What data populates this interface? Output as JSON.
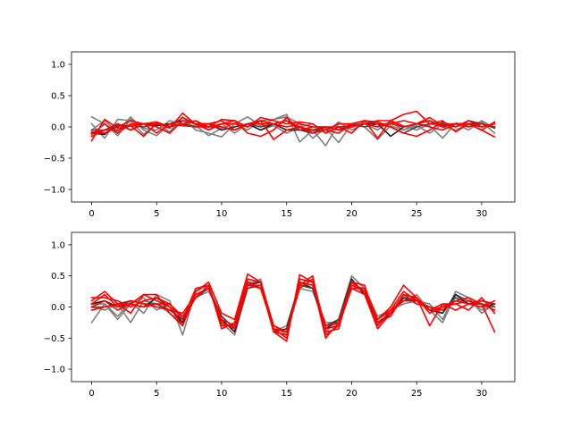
{
  "chart_data": [
    {
      "type": "line",
      "title": "",
      "xlabel": "",
      "ylabel": "",
      "xlim": [
        -1.55,
        32.55
      ],
      "ylim": [
        -1.2,
        1.2
      ],
      "x": [
        0,
        1,
        2,
        3,
        4,
        5,
        6,
        7,
        8,
        9,
        10,
        11,
        12,
        13,
        14,
        15,
        16,
        17,
        18,
        19,
        20,
        21,
        22,
        23,
        24,
        25,
        26,
        27,
        28,
        29,
        30,
        31
      ],
      "xticks": [
        0,
        5,
        10,
        15,
        20,
        25,
        30
      ],
      "xtick_labels": [
        "0",
        "5",
        "10",
        "15",
        "20",
        "25",
        "30"
      ],
      "yticks": [
        -1.0,
        -0.5,
        0.0,
        0.5,
        1.0
      ],
      "ytick_labels": [
        "−1.0",
        "−0.5",
        "0.0",
        "0.5",
        "1.0"
      ],
      "grid": false,
      "legend": "none",
      "series": [
        {
          "color": "#7f7f7f",
          "values": [
            0.16,
            0.05,
            -0.14,
            0.12,
            -0.02,
            -0.05,
            0.1,
            0.04,
            0.02,
            -0.14,
            -0.02,
            0.06,
            -0.05,
            0.1,
            0.12,
            0.2,
            -0.24,
            -0.05,
            -0.3,
            0.05,
            0.04,
            0.0,
            -0.2,
            0.02,
            -0.05,
            0.05,
            0.02,
            -0.18,
            0.06,
            0.03,
            0.08,
            -0.1
          ]
        },
        {
          "color": "#7f7f7f",
          "values": [
            0.05,
            -0.18,
            0.12,
            0.1,
            -0.12,
            0.05,
            -0.08,
            0.16,
            -0.05,
            -0.1,
            -0.16,
            0.05,
            0.16,
            0.02,
            0.12,
            0.16,
            0.05,
            -0.18,
            -0.02,
            -0.25,
            0.05,
            0.05,
            0.0,
            0.08,
            -0.05,
            0.02,
            -0.1,
            0.05,
            0.05,
            -0.05,
            0.1,
            -0.02
          ]
        },
        {
          "color": "#7f7f7f",
          "values": [
            -0.05,
            0.1,
            -0.08,
            0.16,
            -0.05,
            -0.14,
            0.04,
            0.02,
            0.1,
            -0.05,
            0.05,
            -0.1,
            0.05,
            -0.05,
            0.02,
            -0.1,
            0.0,
            0.05,
            -0.1,
            0.08,
            -0.05,
            0.05,
            -0.05,
            0.1,
            0.02,
            -0.05,
            0.05,
            0.0,
            -0.05,
            0.05,
            0.0,
            0.05
          ]
        },
        {
          "color": "#222222",
          "values": [
            -0.1,
            -0.12,
            0.05,
            -0.05,
            0.05,
            0.02,
            0.05,
            0.1,
            0.05,
            0.05,
            -0.05,
            0.0,
            0.05,
            -0.05,
            0.05,
            -0.05,
            -0.05,
            -0.05,
            0.0,
            -0.05,
            0.0,
            0.05,
            0.05,
            -0.15,
            0.0,
            0.05,
            0.1,
            0.0,
            0.05,
            0.05,
            0.05,
            0.0
          ]
        },
        {
          "color": "#444444",
          "values": [
            -0.05,
            -0.05,
            0.02,
            0.02,
            0.0,
            0.05,
            0.0,
            0.05,
            0.0,
            0.05,
            0.0,
            -0.05,
            0.05,
            0.0,
            0.05,
            0.1,
            -0.05,
            -0.1,
            0.0,
            -0.05,
            0.05,
            0.0,
            0.05,
            0.0,
            -0.1,
            0.0,
            0.05,
            0.05,
            0.0,
            0.1,
            0.05,
            -0.02
          ]
        },
        {
          "color": "#ff0000",
          "values": [
            -0.22,
            0.12,
            -0.02,
            0.02,
            -0.15,
            0.06,
            -0.02,
            0.22,
            0.04,
            0.0,
            0.12,
            0.1,
            0.0,
            0.15,
            0.1,
            0.05,
            0.08,
            0.05,
            -0.1,
            0.0,
            -0.1,
            0.1,
            0.05,
            0.05,
            0.0,
            0.05,
            0.15,
            0.02,
            0.05,
            0.05,
            -0.05,
            -0.16
          ]
        },
        {
          "color": "#ff0000",
          "values": [
            -0.08,
            -0.1,
            0.0,
            0.1,
            0.05,
            0.08,
            0.0,
            0.15,
            0.05,
            -0.05,
            0.05,
            0.1,
            -0.1,
            -0.15,
            -0.05,
            0.15,
            -0.05,
            0.0,
            0.0,
            0.0,
            0.02,
            0.05,
            0.1,
            0.1,
            0.2,
            0.25,
            0.05,
            0.1,
            -0.08,
            0.05,
            -0.05,
            0.08
          ]
        },
        {
          "color": "#ff0000",
          "values": [
            -0.12,
            0.05,
            -0.1,
            0.05,
            0.05,
            0.0,
            -0.1,
            0.1,
            0.05,
            0.05,
            0.1,
            -0.05,
            0.05,
            0.1,
            -0.2,
            -0.05,
            0.0,
            -0.05,
            -0.05,
            -0.1,
            0.05,
            0.1,
            0.08,
            0.0,
            -0.1,
            -0.15,
            -0.05,
            0.08,
            0.0,
            0.1,
            0.0,
            0.05
          ]
        },
        {
          "color": "#ff0000",
          "values": [
            -0.15,
            -0.05,
            -0.05,
            0.02,
            0.05,
            -0.1,
            0.05,
            0.02,
            0.0,
            0.0,
            0.05,
            0.05,
            0.0,
            0.1,
            0.05,
            0.1,
            0.0,
            -0.1,
            -0.05,
            0.05,
            0.05,
            0.1,
            -0.18,
            0.1,
            0.0,
            0.05,
            0.0,
            -0.05,
            0.05,
            0.05,
            0.0,
            0.05
          ]
        },
        {
          "color": "#ff0000",
          "values": [
            -0.1,
            -0.05,
            0.05,
            -0.05,
            0.05,
            0.05,
            0.0,
            0.05,
            0.1,
            0.0,
            0.0,
            -0.05,
            0.05,
            0.05,
            0.05,
            0.0,
            0.05,
            0.0,
            0.0,
            -0.05,
            0.0,
            0.05,
            0.0,
            0.05,
            0.1,
            0.05,
            0.1,
            0.0,
            0.05,
            0.0,
            0.05,
            0.0
          ]
        }
      ]
    },
    {
      "type": "line",
      "title": "",
      "xlabel": "",
      "ylabel": "",
      "xlim": [
        -1.55,
        32.55
      ],
      "ylim": [
        -1.2,
        1.2
      ],
      "x": [
        0,
        1,
        2,
        3,
        4,
        5,
        6,
        7,
        8,
        9,
        10,
        11,
        12,
        13,
        14,
        15,
        16,
        17,
        18,
        19,
        20,
        21,
        22,
        23,
        24,
        25,
        26,
        27,
        28,
        29,
        30,
        31
      ],
      "xticks": [
        0,
        5,
        10,
        15,
        20,
        25,
        30
      ],
      "xtick_labels": [
        "0",
        "5",
        "10",
        "15",
        "20",
        "25",
        "30"
      ],
      "yticks": [
        -1.0,
        -0.5,
        0.0,
        0.5,
        1.0
      ],
      "ytick_labels": [
        "−1.0",
        "−0.5",
        "0.0",
        "0.5",
        "1.0"
      ],
      "grid": false,
      "legend": "none",
      "series": [
        {
          "color": "#7f7f7f",
          "values": [
            -0.25,
            0.05,
            -0.15,
            0.08,
            -0.1,
            0.2,
            0.1,
            -0.45,
            0.25,
            0.35,
            -0.25,
            -0.45,
            0.3,
            0.35,
            -0.4,
            -0.3,
            0.35,
            0.3,
            -0.4,
            -0.2,
            0.5,
            0.3,
            -0.3,
            -0.1,
            0.1,
            0.2,
            -0.05,
            -0.25,
            0.2,
            0.05,
            0.05,
            0.0
          ]
        },
        {
          "color": "#7f7f7f",
          "values": [
            0.0,
            -0.05,
            0.05,
            -0.25,
            0.1,
            0.05,
            -0.1,
            -0.25,
            0.2,
            0.3,
            -0.2,
            -0.4,
            0.4,
            0.4,
            -0.3,
            -0.45,
            0.4,
            0.35,
            -0.35,
            -0.25,
            0.4,
            0.2,
            -0.25,
            -0.1,
            0.15,
            0.05,
            0.0,
            -0.1,
            0.2,
            0.1,
            -0.05,
            0.05
          ]
        },
        {
          "color": "#7f7f7f",
          "values": [
            0.05,
            0.05,
            -0.2,
            0.05,
            0.15,
            -0.05,
            0.05,
            -0.2,
            0.15,
            0.25,
            -0.15,
            -0.35,
            0.35,
            0.45,
            -0.35,
            -0.4,
            0.3,
            0.25,
            -0.25,
            -0.25,
            0.35,
            0.3,
            -0.15,
            -0.05,
            0.05,
            0.1,
            0.05,
            -0.2,
            0.25,
            0.15,
            -0.1,
            0.05
          ]
        },
        {
          "color": "#222222",
          "values": [
            0.05,
            0.1,
            0.0,
            0.05,
            0.0,
            0.15,
            0.0,
            -0.25,
            0.2,
            0.3,
            -0.2,
            -0.4,
            0.35,
            0.4,
            -0.4,
            -0.35,
            0.4,
            0.3,
            -0.35,
            -0.2,
            0.45,
            0.2,
            -0.25,
            -0.1,
            0.15,
            0.1,
            -0.05,
            -0.1,
            0.2,
            0.05,
            0.0,
            0.05
          ]
        },
        {
          "color": "#444444",
          "values": [
            0.0,
            0.0,
            0.05,
            0.1,
            0.05,
            0.05,
            -0.05,
            -0.2,
            0.15,
            0.3,
            -0.15,
            -0.35,
            0.3,
            0.35,
            -0.35,
            -0.4,
            0.35,
            0.3,
            -0.3,
            -0.2,
            0.4,
            0.25,
            -0.2,
            -0.05,
            0.1,
            0.1,
            0.0,
            -0.05,
            0.15,
            0.05,
            0.05,
            0.0
          ]
        },
        {
          "color": "#ff0000",
          "values": [
            0.1,
            0.25,
            0.05,
            -0.1,
            0.2,
            0.2,
            -0.1,
            -0.3,
            0.25,
            0.4,
            -0.1,
            -0.2,
            0.53,
            0.4,
            -0.4,
            -0.55,
            0.52,
            0.4,
            -0.5,
            -0.25,
            0.4,
            0.25,
            -0.2,
            0.0,
            0.35,
            0.15,
            -0.1,
            0.0,
            0.1,
            0.15,
            0.05,
            -0.4
          ]
        },
        {
          "color": "#ff0000",
          "values": [
            0.15,
            0.15,
            0.1,
            0.0,
            0.1,
            0.15,
            0.05,
            -0.2,
            0.3,
            0.35,
            -0.3,
            -0.3,
            0.4,
            0.3,
            -0.35,
            -0.5,
            0.45,
            0.4,
            -0.4,
            -0.35,
            0.4,
            0.35,
            -0.3,
            -0.05,
            0.25,
            0.1,
            -0.05,
            0.05,
            -0.05,
            0.05,
            0.1,
            0.05
          ]
        },
        {
          "color": "#ff0000",
          "values": [
            0.0,
            0.1,
            -0.05,
            0.05,
            0.2,
            0.1,
            0.0,
            -0.3,
            0.2,
            0.3,
            -0.25,
            -0.35,
            0.35,
            0.35,
            -0.4,
            -0.45,
            0.35,
            0.5,
            -0.45,
            -0.3,
            0.3,
            0.2,
            -0.35,
            -0.1,
            0.2,
            0.15,
            -0.3,
            0.05,
            0.05,
            -0.05,
            0.15,
            -0.1
          ]
        },
        {
          "color": "#ff0000",
          "values": [
            -0.05,
            0.0,
            0.05,
            0.05,
            0.0,
            0.05,
            0.05,
            -0.15,
            0.15,
            0.35,
            -0.35,
            -0.25,
            0.45,
            0.4,
            -0.3,
            -0.4,
            0.3,
            0.45,
            -0.35,
            -0.3,
            0.35,
            0.25,
            -0.25,
            -0.15,
            0.2,
            0.05,
            0.0,
            -0.05,
            0.1,
            0.05,
            0.0,
            0.1
          ]
        },
        {
          "color": "#ff0000",
          "values": [
            0.05,
            0.2,
            0.0,
            0.1,
            0.05,
            0.0,
            -0.05,
            -0.1,
            0.2,
            0.3,
            -0.2,
            -0.3,
            0.35,
            0.3,
            -0.35,
            -0.4,
            0.4,
            0.35,
            -0.3,
            -0.25,
            0.3,
            0.3,
            -0.2,
            -0.05,
            0.1,
            0.15,
            -0.05,
            0.0,
            0.05,
            0.1,
            0.05,
            -0.05
          ]
        }
      ]
    }
  ]
}
